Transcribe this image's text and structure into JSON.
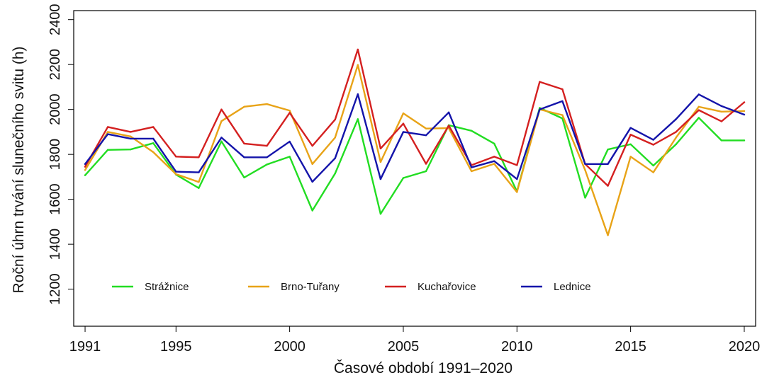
{
  "chart_data": {
    "type": "line",
    "title": "",
    "xlabel": "Časové období 1991–2020",
    "ylabel": "Roční úhrn trvání slunečního svitu (h)",
    "xlim": [
      1990.5,
      2020.5
    ],
    "ylim": [
      1035,
      2440
    ],
    "xticks": [
      1991,
      1995,
      2000,
      2005,
      2010,
      2015,
      2020
    ],
    "yticks": [
      1200,
      1400,
      1600,
      1800,
      2000,
      2200,
      2400
    ],
    "grid": false,
    "legend_position": "bottom-left, inside plot",
    "x": [
      1991,
      1992,
      1993,
      1994,
      1995,
      1996,
      1997,
      1998,
      1999,
      2000,
      2001,
      2002,
      2003,
      2004,
      2005,
      2006,
      2007,
      2008,
      2009,
      2010,
      2011,
      2012,
      2013,
      2014,
      2015,
      2016,
      2017,
      2018,
      2019,
      2020
    ],
    "series": [
      {
        "name": "Strážnice",
        "color": "#22dd22",
        "values": [
          1707,
          1820,
          1822,
          1850,
          1710,
          1650,
          1858,
          1697,
          1755,
          1790,
          1550,
          1715,
          1957,
          1535,
          1695,
          1725,
          1930,
          1905,
          1848,
          1635,
          2007,
          1960,
          1607,
          1822,
          1845,
          1750,
          1845,
          1963,
          1862,
          1862
        ]
      },
      {
        "name": "Brno-Tuřany",
        "color": "#e8a317",
        "values": [
          1730,
          1900,
          1880,
          1810,
          1712,
          1677,
          1948,
          2012,
          2024,
          1995,
          1757,
          1875,
          2198,
          1766,
          1983,
          1915,
          1917,
          1725,
          1758,
          1632,
          2000,
          1975,
          1730,
          1440,
          1790,
          1720,
          1875,
          2012,
          1990,
          1993
        ]
      },
      {
        "name": "Kuchařovice",
        "color": "#d42020",
        "values": [
          1745,
          1922,
          1900,
          1922,
          1790,
          1787,
          2000,
          1848,
          1838,
          1985,
          1838,
          1955,
          2267,
          1826,
          1937,
          1758,
          1928,
          1752,
          1790,
          1752,
          2123,
          2090,
          1757,
          1660,
          1888,
          1843,
          1900,
          1997,
          1947,
          2032
        ]
      },
      {
        "name": "Lednice",
        "color": "#1414aa",
        "values": [
          1757,
          1890,
          1870,
          1870,
          1723,
          1720,
          1875,
          1787,
          1787,
          1857,
          1678,
          1783,
          2068,
          1690,
          1900,
          1885,
          1987,
          1742,
          1770,
          1690,
          2000,
          2037,
          1757,
          1757,
          1918,
          1865,
          1957,
          2067,
          2015,
          1977
        ]
      }
    ]
  }
}
